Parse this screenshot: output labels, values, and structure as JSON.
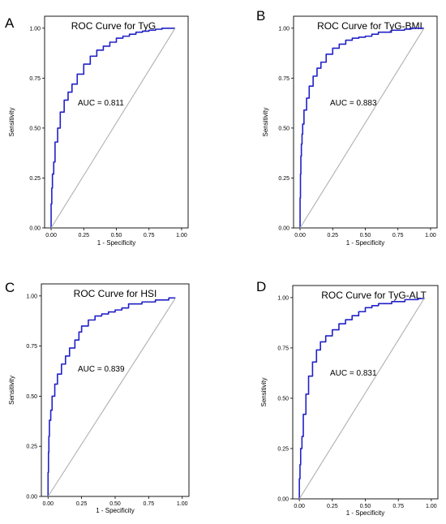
{
  "colors": {
    "roc_curve": "#2020c8",
    "reference_line": "#b0b0b0",
    "frame": "#000000",
    "background": "#ffffff"
  },
  "chart_data": [
    {
      "panel": "A",
      "type": "line",
      "title": "ROC Curve for TyG",
      "xlabel": "1 - Specificity",
      "ylabel": "Sensitivity",
      "annotation": "AUC = 0.811",
      "xlim": [
        -0.05,
        1.05
      ],
      "ylim": [
        0,
        1.06
      ],
      "x_ticks": [
        "0.00",
        "0.25",
        "0.50",
        "0.75",
        "1.00"
      ],
      "y_ticks": [
        "0.00",
        "0.25",
        "0.50",
        "0.75",
        "1.00"
      ],
      "grid": false,
      "series": [
        {
          "style": "roc",
          "x": [
            0,
            0.005,
            0.01,
            0.02,
            0.03,
            0.05,
            0.07,
            0.1,
            0.13,
            0.16,
            0.2,
            0.25,
            0.3,
            0.35,
            0.4,
            0.45,
            0.5,
            0.55,
            0.6,
            0.65,
            0.7,
            0.75,
            0.8,
            0.85,
            0.9,
            0.95
          ],
          "y": [
            0,
            0.12,
            0.2,
            0.27,
            0.33,
            0.43,
            0.5,
            0.58,
            0.64,
            0.68,
            0.72,
            0.77,
            0.82,
            0.86,
            0.89,
            0.91,
            0.93,
            0.95,
            0.96,
            0.97,
            0.98,
            0.985,
            0.99,
            0.995,
            1.0,
            1.0
          ]
        },
        {
          "style": "reference",
          "x": [
            0,
            0.95
          ],
          "y": [
            0,
            1.0
          ]
        }
      ]
    },
    {
      "panel": "B",
      "type": "line",
      "title": "ROC Curve for TyG-BMI",
      "xlabel": "1 - Specificity",
      "ylabel": "Sensitivity",
      "annotation": "AUC = 0.883",
      "xlim": [
        -0.05,
        1.05
      ],
      "ylim": [
        0,
        1.06
      ],
      "x_ticks": [
        "0.00",
        "0.25",
        "0.50",
        "0.75",
        "1.00"
      ],
      "y_ticks": [
        "0.00",
        "0.25",
        "0.50",
        "0.75",
        "1.00"
      ],
      "grid": false,
      "series": [
        {
          "style": "roc",
          "x": [
            0,
            0.003,
            0.006,
            0.01,
            0.015,
            0.02,
            0.03,
            0.05,
            0.07,
            0.1,
            0.13,
            0.16,
            0.2,
            0.25,
            0.3,
            0.35,
            0.4,
            0.45,
            0.5,
            0.55,
            0.6,
            0.7,
            0.8,
            0.85,
            0.9,
            0.95
          ],
          "y": [
            0,
            0.15,
            0.27,
            0.36,
            0.42,
            0.47,
            0.52,
            0.59,
            0.65,
            0.71,
            0.76,
            0.8,
            0.83,
            0.87,
            0.9,
            0.92,
            0.94,
            0.95,
            0.955,
            0.96,
            0.97,
            0.98,
            0.99,
            0.995,
            1.0,
            1.0
          ]
        },
        {
          "style": "reference",
          "x": [
            0,
            0.95
          ],
          "y": [
            0,
            1.0
          ]
        }
      ]
    },
    {
      "panel": "C",
      "type": "line",
      "title": "ROC Curve for HSI",
      "xlabel": "1 - Specificity",
      "ylabel": "Sensitivity",
      "annotation": "AUC = 0.839",
      "xlim": [
        -0.05,
        1.05
      ],
      "ylim": [
        0,
        1.06
      ],
      "x_ticks": [
        "0.00",
        "0.25",
        "0.50",
        "0.75",
        "1.00"
      ],
      "y_ticks": [
        "0.00",
        "0.25",
        "0.50",
        "0.75",
        "1.00"
      ],
      "grid": false,
      "series": [
        {
          "style": "roc",
          "x": [
            0,
            0.003,
            0.006,
            0.01,
            0.02,
            0.03,
            0.05,
            0.07,
            0.1,
            0.13,
            0.16,
            0.2,
            0.23,
            0.25,
            0.3,
            0.35,
            0.4,
            0.45,
            0.5,
            0.55,
            0.6,
            0.7,
            0.8,
            0.9,
            0.95
          ],
          "y": [
            0,
            0.12,
            0.22,
            0.3,
            0.38,
            0.43,
            0.5,
            0.56,
            0.61,
            0.66,
            0.7,
            0.74,
            0.78,
            0.82,
            0.85,
            0.88,
            0.9,
            0.91,
            0.92,
            0.93,
            0.94,
            0.96,
            0.97,
            0.98,
            0.99
          ]
        },
        {
          "style": "reference",
          "x": [
            0,
            0.95
          ],
          "y": [
            0,
            0.99
          ]
        }
      ]
    },
    {
      "panel": "D",
      "type": "line",
      "title": "ROC Curve for TyG-ALT",
      "xlabel": "1 - Specificity",
      "ylabel": "Sensitivity",
      "annotation": "AUC = 0.831",
      "xlim": [
        -0.05,
        1.05
      ],
      "ylim": [
        0,
        1.06
      ],
      "x_ticks": [
        "0.00",
        "0.25",
        "0.50",
        "0.75",
        "1.00"
      ],
      "y_ticks": [
        "0.00",
        "0.25",
        "0.50",
        "0.75",
        "1.00"
      ],
      "grid": false,
      "series": [
        {
          "style": "roc",
          "x": [
            0,
            0.005,
            0.01,
            0.02,
            0.03,
            0.05,
            0.07,
            0.1,
            0.13,
            0.16,
            0.2,
            0.25,
            0.3,
            0.35,
            0.4,
            0.45,
            0.5,
            0.55,
            0.6,
            0.7,
            0.8,
            0.9,
            0.95
          ],
          "y": [
            0,
            0.1,
            0.17,
            0.25,
            0.31,
            0.42,
            0.52,
            0.61,
            0.68,
            0.74,
            0.78,
            0.81,
            0.84,
            0.87,
            0.89,
            0.91,
            0.93,
            0.95,
            0.96,
            0.97,
            0.98,
            0.99,
            0.995
          ]
        },
        {
          "style": "reference",
          "x": [
            0,
            0.95
          ],
          "y": [
            0,
            1.0
          ]
        }
      ]
    }
  ]
}
